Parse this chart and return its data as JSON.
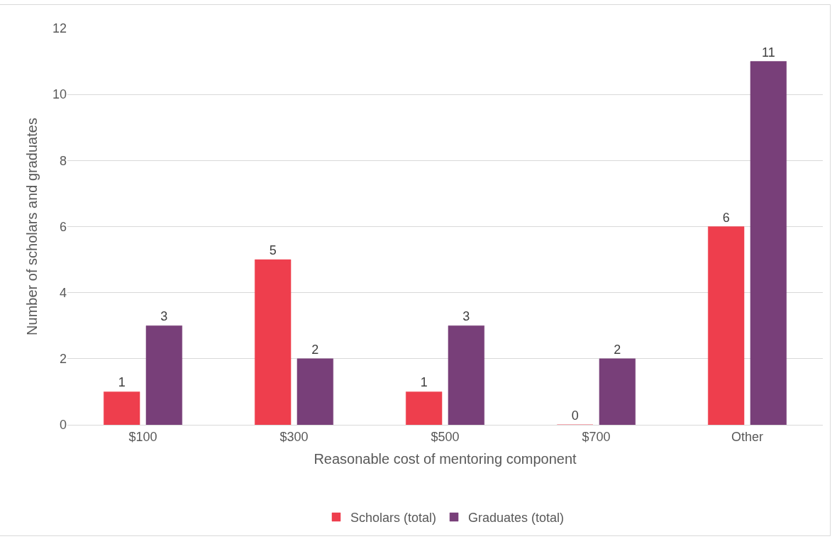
{
  "chart_data": {
    "type": "bar",
    "xlabel": "Reasonable cost of mentoring component",
    "ylabel": "Number of scholars and graduates",
    "categories": [
      "$100",
      "$300",
      "$500",
      "$700",
      "Other"
    ],
    "series": [
      {
        "name": "Scholars (total)",
        "color": "#ee3e4d",
        "values": [
          1,
          5,
          1,
          0,
          6
        ]
      },
      {
        "name": "Graduates (total)",
        "color": "#783f79",
        "values": [
          3,
          2,
          3,
          2,
          11
        ]
      }
    ],
    "ylim": [
      0,
      12
    ],
    "yticks": [
      0,
      2,
      4,
      6,
      8,
      10,
      12
    ],
    "grid": "y",
    "legend": "bottom",
    "data_labels": true
  }
}
